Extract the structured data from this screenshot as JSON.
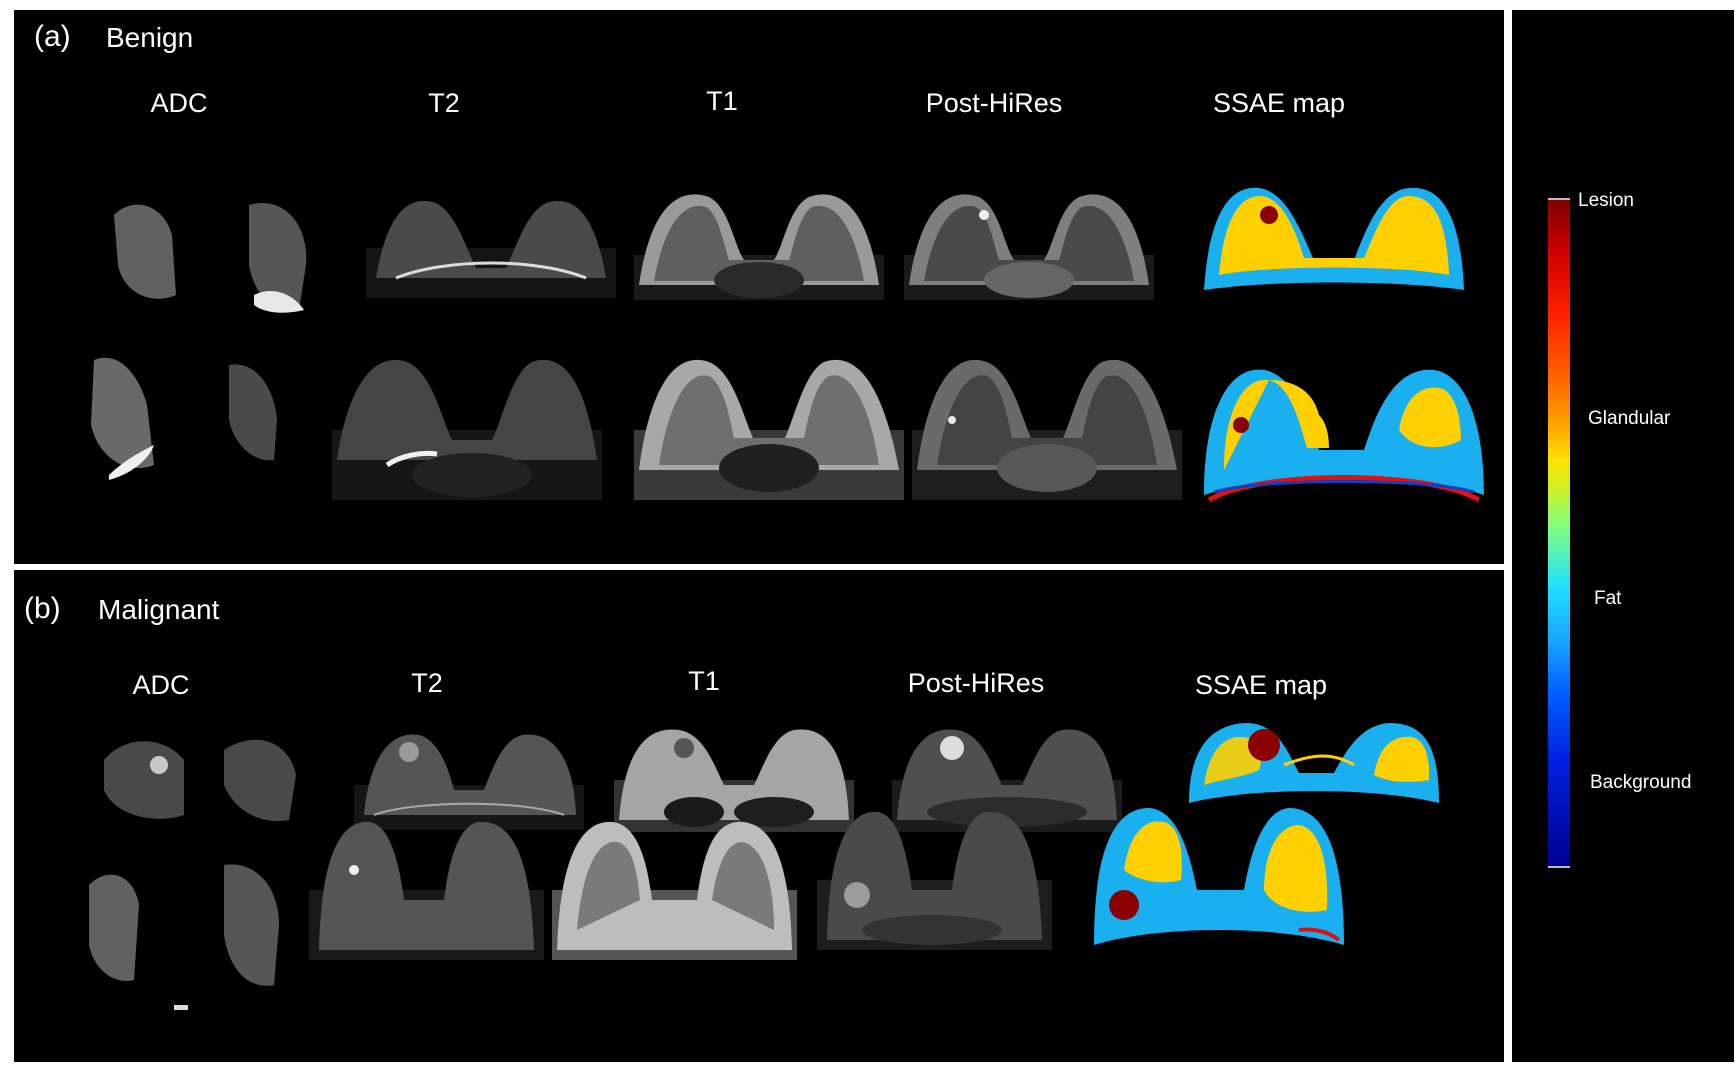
{
  "panels": [
    {
      "label": "(a)",
      "title": "Benign",
      "columns": [
        "ADC",
        "T2",
        "T1",
        "Post-HiRes",
        "SSAE map"
      ]
    },
    {
      "label": "(b)",
      "title": "Malignant",
      "columns": [
        "ADC",
        "T2",
        "T1",
        "Post-HiRes",
        "SSAE map"
      ]
    }
  ],
  "legend": {
    "labels": [
      "Lesion",
      "Glandular",
      "Fat",
      "Background"
    ]
  },
  "colors": {
    "lesion": "#8b0000",
    "glandular": "#ffd000",
    "fat": "#1ab0f0",
    "background": "#000080"
  }
}
